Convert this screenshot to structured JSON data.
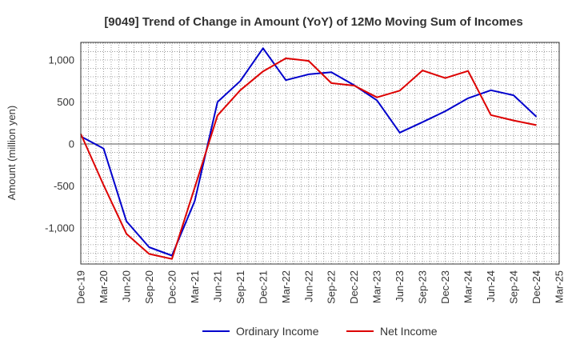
{
  "chart_data": {
    "type": "line",
    "title": "[9049]  Trend of Change in Amount (YoY) of 12Mo Moving Sum of Incomes",
    "xlabel": "",
    "ylabel": "Amount (million yen)",
    "ylim": [
      -1430,
      1210
    ],
    "yticks": [
      1000,
      500,
      0,
      -500,
      -1000
    ],
    "ytick_labels": [
      "1,000",
      "500",
      "0",
      "-500",
      "-1,000"
    ],
    "categories": [
      "Dec-19",
      "Mar-20",
      "Jun-20",
      "Sep-20",
      "Dec-20",
      "Mar-21",
      "Jun-21",
      "Sep-21",
      "Dec-21",
      "Mar-22",
      "Jun-22",
      "Sep-22",
      "Dec-22",
      "Mar-23",
      "Jun-23",
      "Sep-23",
      "Dec-23",
      "Mar-24",
      "Jun-24",
      "Sep-24",
      "Dec-24",
      "Mar-25"
    ],
    "series": [
      {
        "name": "Ordinary Income",
        "color": "#0000cc",
        "values": [
          90,
          -55,
          -920,
          -1230,
          -1330,
          -680,
          500,
          750,
          1140,
          760,
          830,
          855,
          700,
          520,
          135,
          260,
          390,
          545,
          640,
          580,
          325,
          null
        ]
      },
      {
        "name": "Net Income",
        "color": "#dd0000",
        "values": [
          120,
          -490,
          -1070,
          -1310,
          -1370,
          -520,
          340,
          640,
          865,
          1020,
          990,
          725,
          695,
          555,
          635,
          875,
          785,
          870,
          345,
          280,
          225,
          null
        ]
      }
    ],
    "legend_position": "bottom-center",
    "grid": true
  }
}
